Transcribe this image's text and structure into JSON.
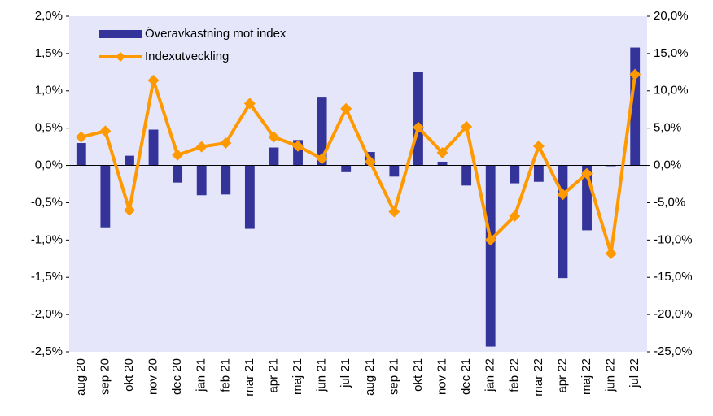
{
  "chart_data": {
    "type": "bar-line",
    "categories": [
      "aug 20",
      "sep 20",
      "okt 20",
      "nov 20",
      "dec 20",
      "jan 21",
      "feb 21",
      "mar 21",
      "apr 21",
      "maj 21",
      "jun 21",
      "jul 21",
      "aug 21",
      "sep 21",
      "okt 21",
      "nov 21",
      "dec 21",
      "jan 22",
      "feb 22",
      "mar 22",
      "apr 22",
      "maj 22",
      "jun 22",
      "jul 22"
    ],
    "series": [
      {
        "name": "Överavkastning mot index",
        "color": "#333399",
        "type": "bar",
        "values": [
          0.3,
          -0.83,
          0.13,
          0.48,
          -0.23,
          -0.4,
          -0.39,
          -0.85,
          0.24,
          0.34,
          0.92,
          -0.09,
          0.18,
          -0.15,
          1.25,
          0.05,
          -0.27,
          -2.43,
          -0.24,
          -0.22,
          -1.51,
          -0.87,
          -0.01,
          1.58
        ]
      },
      {
        "name": "Indexutveckling",
        "color": "#ff9900",
        "type": "line",
        "axis": "y2",
        "values": [
          3.8,
          4.6,
          -6.0,
          11.4,
          1.4,
          2.5,
          3.0,
          8.3,
          3.8,
          2.6,
          0.9,
          7.6,
          0.5,
          -6.2,
          5.1,
          1.7,
          5.2,
          -10.0,
          -6.8,
          2.6,
          -3.9,
          -1.1,
          -11.8,
          12.2
        ]
      }
    ],
    "ylim": [
      -2.5,
      2.0
    ],
    "yticks": [
      {
        "value": -2.5,
        "label": "-2,5%"
      },
      {
        "value": -2.0,
        "label": "-2,0%"
      },
      {
        "value": -1.5,
        "label": "-1,5%"
      },
      {
        "value": -1.0,
        "label": "-1,0%"
      },
      {
        "value": -0.5,
        "label": "-0,5%"
      },
      {
        "value": 0,
        "label": "0,0%"
      },
      {
        "value": 0.5,
        "label": "0,5%"
      },
      {
        "value": 1.0,
        "label": "1,0%"
      },
      {
        "value": 1.5,
        "label": "1,5%"
      },
      {
        "value": 2.0,
        "label": "2,0%"
      }
    ],
    "y2lim": [
      -25,
      20
    ],
    "y2ticks": [
      {
        "value": -25,
        "label": "-25,0%"
      },
      {
        "value": -20,
        "label": "-20,0%"
      },
      {
        "value": -15,
        "label": "-15,0%"
      },
      {
        "value": -10,
        "label": "-10,0%"
      },
      {
        "value": -5,
        "label": "-5,0%"
      },
      {
        "value": 0,
        "label": "0,0%"
      },
      {
        "value": 5,
        "label": "5,0%"
      },
      {
        "value": 10,
        "label": "10,0%"
      },
      {
        "value": 15,
        "label": "15,0%"
      },
      {
        "value": 20,
        "label": "20,0%"
      }
    ],
    "legend": "upper left",
    "background": "#e6e6fa"
  }
}
